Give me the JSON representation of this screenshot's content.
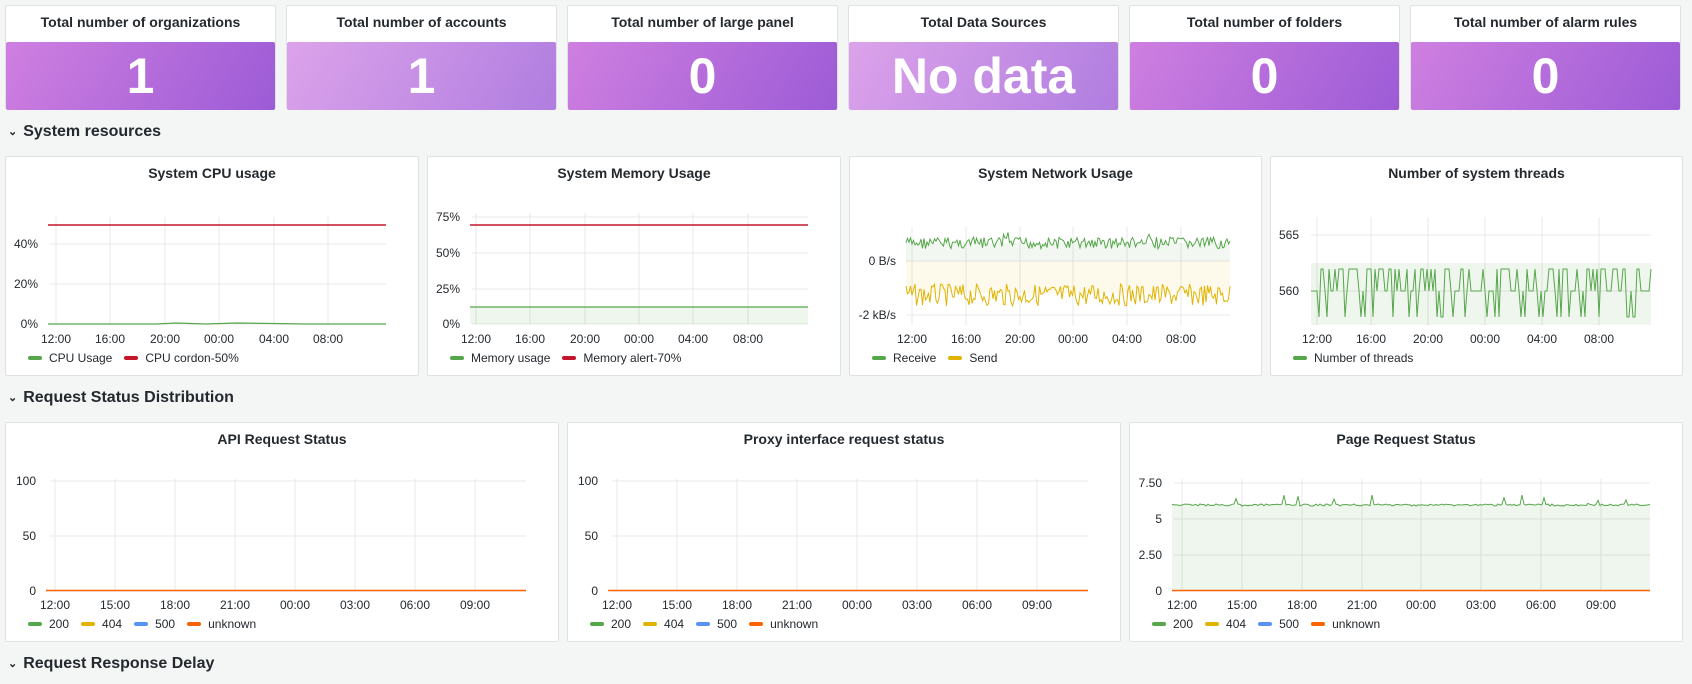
{
  "stats": [
    {
      "title": "Total number of organizations",
      "value": "1"
    },
    {
      "title": "Total number of accounts",
      "value": "1"
    },
    {
      "title": "Total number of large panel",
      "value": "0"
    },
    {
      "title": "Total Data Sources",
      "value": "No data"
    },
    {
      "title": "Total number of folders",
      "value": "0"
    },
    {
      "title": "Total number of alarm rules",
      "value": "0"
    }
  ],
  "rows": {
    "system": "System resources",
    "status": "Request Status Distribution",
    "delay": "Request Response Delay"
  },
  "colors": {
    "green": "#56a64b",
    "red": "#c4162a",
    "yellow": "#e0b400",
    "blue": "#5794f2",
    "orange": "#fa6400"
  },
  "panels": {
    "cpu": {
      "title": "System CPU usage",
      "y_ticks": [
        "0%",
        "20%",
        "40%"
      ],
      "x_ticks": [
        "12:00",
        "16:00",
        "20:00",
        "00:00",
        "04:00",
        "08:00"
      ],
      "legend": [
        "CPU Usage",
        "CPU cordon-50%"
      ]
    },
    "mem": {
      "title": "System Memory Usage",
      "y_ticks": [
        "0%",
        "25%",
        "50%",
        "75%"
      ],
      "x_ticks": [
        "12:00",
        "16:00",
        "20:00",
        "00:00",
        "04:00",
        "08:00"
      ],
      "legend": [
        "Memory usage",
        "Memory alert-70%"
      ]
    },
    "net": {
      "title": "System Network Usage",
      "y_ticks": [
        "-2 kB/s",
        "0 B/s"
      ],
      "x_ticks": [
        "12:00",
        "16:00",
        "20:00",
        "00:00",
        "04:00",
        "08:00"
      ],
      "legend": [
        "Receive",
        "Send"
      ]
    },
    "threads": {
      "title": "Number of system threads",
      "y_ticks": [
        "560",
        "565"
      ],
      "x_ticks": [
        "12:00",
        "16:00",
        "20:00",
        "00:00",
        "04:00",
        "08:00"
      ],
      "legend": [
        "Number of threads"
      ]
    },
    "api": {
      "title": "API Request Status",
      "y_ticks": [
        "0",
        "50",
        "100"
      ],
      "x_ticks": [
        "12:00",
        "15:00",
        "18:00",
        "21:00",
        "00:00",
        "03:00",
        "06:00",
        "09:00"
      ],
      "legend": [
        "200",
        "404",
        "500",
        "unknown"
      ]
    },
    "proxy": {
      "title": "Proxy interface request status",
      "y_ticks": [
        "0",
        "50",
        "100"
      ],
      "x_ticks": [
        "12:00",
        "15:00",
        "18:00",
        "21:00",
        "00:00",
        "03:00",
        "06:00",
        "09:00"
      ],
      "legend": [
        "200",
        "404",
        "500",
        "unknown"
      ]
    },
    "page": {
      "title": "Page Request Status",
      "y_ticks": [
        "0",
        "2.50",
        "5",
        "7.50"
      ],
      "x_ticks": [
        "12:00",
        "15:00",
        "18:00",
        "21:00",
        "00:00",
        "03:00",
        "06:00",
        "09:00"
      ],
      "legend": [
        "200",
        "404",
        "500",
        "unknown"
      ]
    }
  }
}
